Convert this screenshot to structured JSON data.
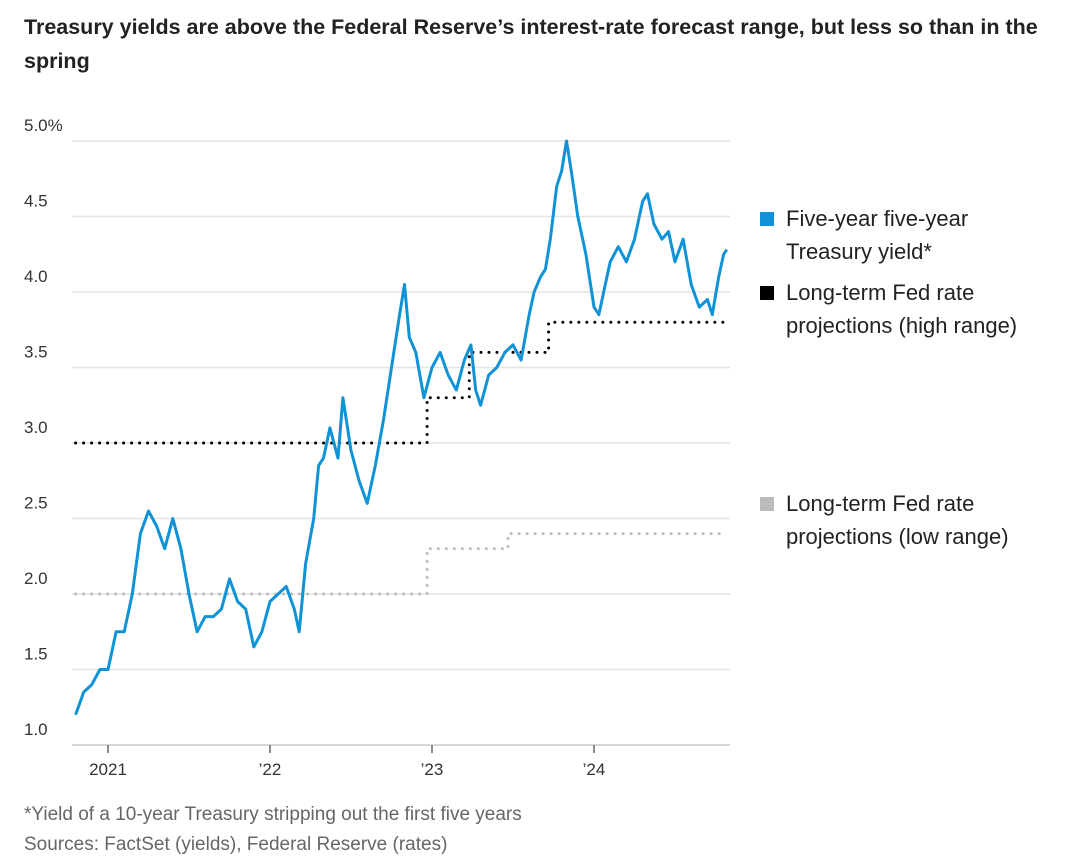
{
  "title": "Treasury yields are above the Federal Reserve’s interest-rate forecast range, but less so than in the spring",
  "footnote": "*Yield of a 10-year Treasury stripping out the first five years",
  "sources": "Sources: FactSet (yields), Federal Reserve (rates)",
  "chart_data": {
    "type": "line",
    "title": "Treasury yields are above the Federal Reserve’s interest-rate forecast range, but less so than in the spring",
    "xlabel": "",
    "ylabel": "",
    "ylim": [
      1.0,
      5.0
    ],
    "xlim": [
      2020.8,
      2024.85
    ],
    "y_ticks": [
      {
        "v": 5.0,
        "label": "5.0%"
      },
      {
        "v": 4.5,
        "label": "4.5"
      },
      {
        "v": 4.0,
        "label": "4.0"
      },
      {
        "v": 3.5,
        "label": "3.5"
      },
      {
        "v": 3.0,
        "label": "3.0"
      },
      {
        "v": 2.5,
        "label": "2.5"
      },
      {
        "v": 2.0,
        "label": "2.0"
      },
      {
        "v": 1.5,
        "label": "1.5"
      },
      {
        "v": 1.0,
        "label": "1.0"
      }
    ],
    "x_ticks": [
      {
        "v": 2021,
        "label": "2021"
      },
      {
        "v": 2022,
        "label": "’22"
      },
      {
        "v": 2023,
        "label": "’23"
      },
      {
        "v": 2024,
        "label": "’24"
      }
    ],
    "grid": true,
    "legend_placement": "right",
    "series": [
      {
        "name": "Five-year five-year Treasury yield*",
        "color": "#0f93d6",
        "style": "solid",
        "x": [
          2020.8,
          2020.85,
          2020.9,
          2020.95,
          2021.0,
          2021.05,
          2021.1,
          2021.15,
          2021.2,
          2021.25,
          2021.3,
          2021.35,
          2021.4,
          2021.45,
          2021.5,
          2021.55,
          2021.6,
          2021.65,
          2021.7,
          2021.75,
          2021.8,
          2021.85,
          2021.9,
          2021.95,
          2022.0,
          2022.05,
          2022.1,
          2022.15,
          2022.18,
          2022.22,
          2022.27,
          2022.3,
          2022.33,
          2022.37,
          2022.42,
          2022.45,
          2022.5,
          2022.55,
          2022.6,
          2022.65,
          2022.7,
          2022.75,
          2022.8,
          2022.83,
          2022.86,
          2022.9,
          2022.95,
          2023.0,
          2023.05,
          2023.1,
          2023.15,
          2023.2,
          2023.24,
          2023.27,
          2023.3,
          2023.35,
          2023.4,
          2023.45,
          2023.5,
          2023.55,
          2023.6,
          2023.63,
          2023.67,
          2023.7,
          2023.73,
          2023.77,
          2023.8,
          2023.83,
          2023.86,
          2023.9,
          2023.95,
          2024.0,
          2024.03,
          2024.07,
          2024.1,
          2024.15,
          2024.2,
          2024.25,
          2024.3,
          2024.33,
          2024.37,
          2024.42,
          2024.46,
          2024.5,
          2024.55,
          2024.6,
          2024.65,
          2024.7,
          2024.73,
          2024.77,
          2024.8,
          2024.82
        ],
        "y": [
          1.2,
          1.35,
          1.4,
          1.5,
          1.5,
          1.75,
          1.75,
          2.0,
          2.4,
          2.55,
          2.45,
          2.3,
          2.5,
          2.3,
          2.0,
          1.75,
          1.85,
          1.85,
          1.9,
          2.1,
          1.95,
          1.9,
          1.65,
          1.75,
          1.95,
          2.0,
          2.05,
          1.9,
          1.75,
          2.2,
          2.5,
          2.85,
          2.9,
          3.1,
          2.9,
          3.3,
          2.95,
          2.75,
          2.6,
          2.85,
          3.15,
          3.5,
          3.85,
          4.05,
          3.7,
          3.6,
          3.3,
          3.5,
          3.6,
          3.45,
          3.35,
          3.55,
          3.65,
          3.35,
          3.25,
          3.45,
          3.5,
          3.6,
          3.65,
          3.55,
          3.85,
          4.0,
          4.1,
          4.15,
          4.35,
          4.7,
          4.8,
          5.0,
          4.8,
          4.5,
          4.25,
          3.9,
          3.85,
          4.05,
          4.2,
          4.3,
          4.2,
          4.35,
          4.6,
          4.65,
          4.45,
          4.35,
          4.4,
          4.2,
          4.35,
          4.05,
          3.9,
          3.95,
          3.85,
          4.1,
          4.25,
          4.28
        ]
      },
      {
        "name": "Long-term Fed rate projections (high range)",
        "color": "#000000",
        "style": "dotted",
        "x": [
          2020.8,
          2022.97,
          2022.97,
          2023.23,
          2023.23,
          2023.72,
          2023.72,
          2024.8
        ],
        "y": [
          3.0,
          3.0,
          3.3,
          3.3,
          3.6,
          3.6,
          3.8,
          3.8
        ]
      },
      {
        "name": "Long-term Fed rate projections (low range)",
        "color": "#bbbbbb",
        "style": "dotted",
        "x": [
          2020.8,
          2022.97,
          2022.97,
          2023.47,
          2023.47,
          2024.8
        ],
        "y": [
          2.0,
          2.0,
          2.3,
          2.3,
          2.4,
          2.4
        ]
      }
    ],
    "legend": [
      {
        "label_1": "Five-year five-year",
        "label_2": "Treasury yield*",
        "color": "#0f93d6"
      },
      {
        "label_1": "Long-term Fed rate",
        "label_2": "projections (high range)",
        "color": "#000000"
      },
      {
        "label_1": "Long-term Fed rate",
        "label_2": "projections (low range)",
        "color": "#bbbbbb"
      }
    ]
  }
}
